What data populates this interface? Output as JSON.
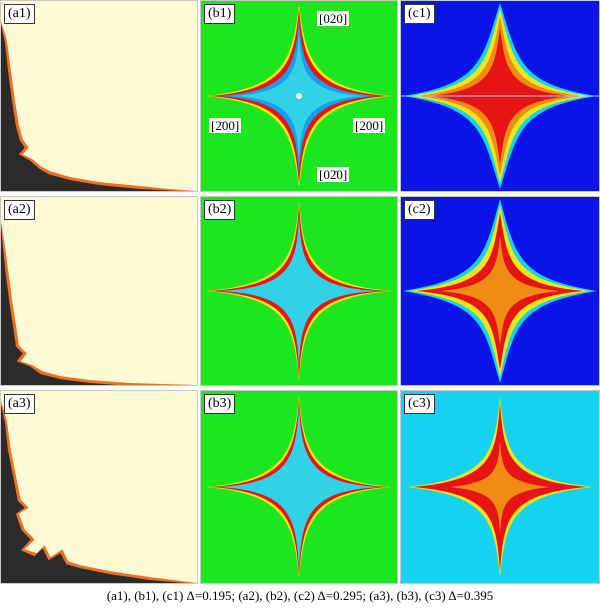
{
  "panels": {
    "a1": {
      "label": "(a1)"
    },
    "b1": {
      "label": "(b1)"
    },
    "c1": {
      "label": "(c1)"
    },
    "a2": {
      "label": "(a2)"
    },
    "b2": {
      "label": "(b2)"
    },
    "c2": {
      "label": "(c2)"
    },
    "a3": {
      "label": "(a3)"
    },
    "b3": {
      "label": "(b3)"
    },
    "c3": {
      "label": "(c3)"
    }
  },
  "directions": {
    "up": "[020]",
    "left": "[2̄00]",
    "right": "[200]",
    "down": "[02̄0]"
  },
  "caption": "(a1), (b1), (c1) Δ=0.195; (a2), (b2), (c2) Δ=0.295; (a3), (b3), (c3) Δ=0.395",
  "colors": {
    "solid": "#fdfbd6",
    "liquid": "#2b2b2b",
    "interface": "#f07020",
    "green_bg": "#1ee61e",
    "blue_bg": "#0a14e6",
    "cyan_bg": "#14d2f0",
    "red": "#e61414",
    "yellow": "#f0e614",
    "cyan_core": "#32d2e6",
    "orange_core": "#f08c14"
  }
}
